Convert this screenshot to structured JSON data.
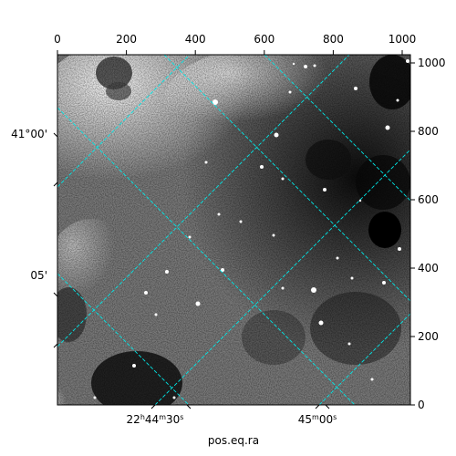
{
  "axes": {
    "bottom_title": "pos.eq.ra",
    "top_ticks": [
      "0",
      "200",
      "400",
      "600",
      "800",
      "1000"
    ],
    "right_ticks": [
      "0",
      "200",
      "400",
      "600",
      "800",
      "1000"
    ],
    "ra_ticks": [
      {
        "main": "22",
        "h": "h",
        "m_val": "44",
        "m": "m",
        "s_val": "30",
        "s": "s"
      },
      {
        "main": "",
        "h": "",
        "m_val": "45",
        "m": "m",
        "s_val": "00",
        "s": "s"
      }
    ],
    "dec_ticks": [
      "41°00'",
      "05'"
    ]
  },
  "colors": {
    "grid": "#00e5e5",
    "frame": "#000000"
  }
}
